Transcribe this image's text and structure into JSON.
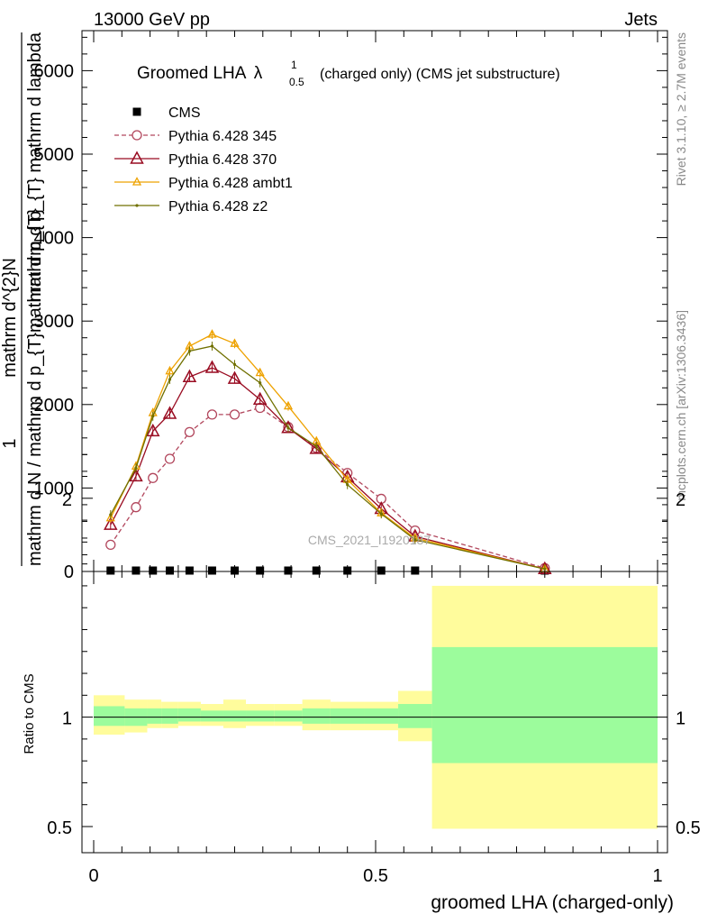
{
  "header": {
    "energy": "13000 GeV pp",
    "category": "Jets"
  },
  "side": {
    "rivet": "Rivet 3.1.10, ≥ 2.7M events",
    "mcplots": "mcplots.cern.ch [arXiv:1306.3436]"
  },
  "watermark": "CMS_2021_I1920187",
  "chart_data": [
    {
      "type": "line",
      "title_main": "Groomed LHA",
      "title_lambda": "λ",
      "title_sup": "1",
      "title_sub": "0.5",
      "title_rest": "(charged only) (CMS jet substructure)",
      "ylabel_left": "1",
      "ylabel_denominator": "mathrm d N / mathrm d p_{T}mathrm d p_{T}",
      "ylabel_numerator": "mathrm d^{2}N",
      "ylabel_right": "mathrm d p_{T} mathrm d lambda",
      "ylim": [
        0,
        6500
      ],
      "yticks": [
        "0",
        "1000",
        "2000",
        "3000",
        "4000",
        "5000",
        "6000"
      ],
      "legend_position": "top-left",
      "x": [
        0.03,
        0.075,
        0.105,
        0.135,
        0.17,
        0.21,
        0.25,
        0.295,
        0.345,
        0.395,
        0.45,
        0.51,
        0.57,
        0.8
      ],
      "series": [
        {
          "name": "CMS",
          "color": "#000000",
          "marker": "square",
          "values": [
            0,
            0,
            0,
            0,
            0,
            0,
            0,
            0,
            0,
            0,
            0,
            0,
            0,
            0
          ]
        },
        {
          "name": "Pythia 6.428 345",
          "color": "#b2475d",
          "marker": "open-circle",
          "dashed": true,
          "values": [
            320,
            770,
            1120,
            1350,
            1670,
            1880,
            1880,
            1960,
            1730,
            1480,
            1180,
            870,
            490,
            40
          ]
        },
        {
          "name": "Pythia 6.428 370",
          "color": "#990b21",
          "marker": "open-triangle",
          "values": [
            560,
            1140,
            1680,
            1890,
            2330,
            2440,
            2310,
            2060,
            1720,
            1470,
            1130,
            750,
            420,
            30
          ]
        },
        {
          "name": "Pythia 6.428 ambt1",
          "color": "#eea200",
          "marker": "open-triangle-small",
          "values": [
            640,
            1260,
            1900,
            2400,
            2700,
            2840,
            2730,
            2380,
            1980,
            1560,
            1100,
            700,
            400,
            30
          ]
        },
        {
          "name": "Pythia 6.428 z2",
          "color": "#707000",
          "marker": "dot",
          "values": [
            680,
            1240,
            1860,
            2300,
            2640,
            2700,
            2480,
            2260,
            1720,
            1500,
            1040,
            690,
            380,
            30
          ]
        }
      ]
    },
    {
      "type": "area",
      "ylabel": "Ratio to CMS",
      "xlabel": "groomed LHA (charged-only)",
      "ylim": [
        0.45,
        2.3
      ],
      "yticks": [
        "0.5",
        "1",
        "2"
      ],
      "xticks": [
        "0",
        "0.5",
        "1"
      ],
      "bands": {
        "edges": [
          0.0,
          0.055,
          0.095,
          0.12,
          0.15,
          0.19,
          0.23,
          0.27,
          0.32,
          0.37,
          0.42,
          0.48,
          0.54,
          0.6,
          1.0
        ],
        "inner_color": "#9cfc9c",
        "outer_color": "#fffc9c",
        "inner_lo": [
          0.96,
          0.96,
          0.97,
          0.97,
          0.98,
          0.98,
          0.98,
          0.98,
          0.98,
          0.97,
          0.97,
          0.97,
          0.95,
          0.79
        ],
        "inner_hi": [
          1.05,
          1.04,
          1.04,
          1.04,
          1.04,
          1.03,
          1.03,
          1.03,
          1.03,
          1.04,
          1.04,
          1.04,
          1.06,
          1.32
        ],
        "outer_lo": [
          0.92,
          0.93,
          0.95,
          0.95,
          0.96,
          0.96,
          0.95,
          0.96,
          0.96,
          0.94,
          0.94,
          0.94,
          0.89,
          0.49
        ],
        "outer_hi": [
          1.1,
          1.08,
          1.08,
          1.07,
          1.07,
          1.06,
          1.08,
          1.06,
          1.06,
          1.08,
          1.07,
          1.07,
          1.12,
          1.6
        ]
      }
    }
  ]
}
